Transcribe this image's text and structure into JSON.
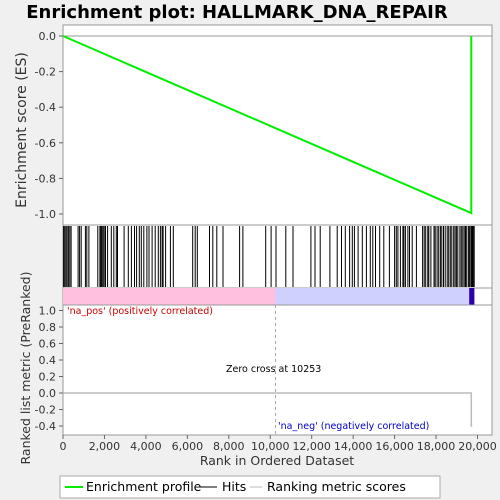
{
  "chart_data": {
    "type": "line",
    "title": "Enrichment plot: HALLMARK_DNA_REPAIR",
    "es_panel": {
      "ylabel": "Enrichment score (ES)",
      "ylim": [
        -1.05,
        0.05
      ],
      "yticks": [
        0.0,
        -0.2,
        -0.4,
        -0.6,
        -0.8,
        -1.0
      ],
      "ytick_labels": [
        "0.0",
        "-0.2",
        "-0.4",
        "-0.6",
        "-0.8",
        "-1.0"
      ],
      "series": [
        {
          "name": "Enrichment profile",
          "color": "#00ee00",
          "x": [
            0,
            19700,
            19700
          ],
          "y": [
            0.0,
            -0.995,
            0.0
          ]
        }
      ]
    },
    "hits": [
      30,
      80,
      140,
      200,
      260,
      330,
      390,
      730,
      800,
      880,
      1080,
      1150,
      1250,
      1680,
      1780,
      1830,
      1870,
      1930,
      1990,
      2050,
      2150,
      2330,
      2450,
      2570,
      2630,
      2950,
      3150,
      3300,
      3450,
      3550,
      3680,
      3780,
      3900,
      4050,
      4150,
      4300,
      4450,
      4600,
      4700,
      4780,
      4830,
      4950,
      5180,
      5320,
      6260,
      6380,
      6480,
      7070,
      7230,
      7420,
      7720,
      8520,
      8680,
      9780,
      10040,
      10280,
      10750,
      11100,
      11960,
      12160,
      12410,
      12880,
      13230,
      13440,
      13620,
      13830,
      13960,
      14060,
      14240,
      14440,
      14640,
      14830,
      14950,
      15080,
      15280,
      15480,
      15750,
      16000,
      16080,
      16160,
      16280,
      16400,
      16450,
      16520,
      16640,
      16720,
      16850,
      17050,
      17350,
      17430,
      17500,
      17600,
      17650,
      17750,
      17900,
      17960,
      18050,
      18130,
      18210,
      18280,
      18360,
      18440,
      18540,
      18610,
      18690,
      18760,
      18850,
      18920,
      18980,
      19050,
      19150,
      19220,
      19290,
      19360,
      19420,
      19480,
      19560,
      19620,
      19680,
      19720,
      19760,
      19800,
      19840
    ],
    "heatmap": {
      "pos_color": "#ffc0e0",
      "neg_color": "#d0d0ff",
      "zero_cross_rank": 10253
    },
    "metric_panel": {
      "ylabel": "Ranked list metric (PreRanked)",
      "xlabel": "Rank in Ordered Dataset",
      "ylim": [
        -0.45,
        1.05
      ],
      "yticks": [
        1.0,
        0.8,
        0.6,
        0.4,
        0.2,
        0.0,
        -0.2,
        -0.4
      ],
      "ytick_labels": [
        "1.0",
        "0.8",
        "0.6",
        "0.4",
        "0.2",
        "0.0",
        "-0.2",
        "-0.4"
      ],
      "xlim": [
        0,
        20700
      ],
      "xticks": [
        0,
        2000,
        4000,
        6000,
        8000,
        10000,
        12000,
        14000,
        16000,
        18000,
        20000
      ],
      "xtick_labels": [
        "0",
        "2,000",
        "4,000",
        "6,000",
        "8,000",
        "10,000",
        "12,000",
        "14,000",
        "16,000",
        "18,000",
        "20,000"
      ],
      "metric_line": {
        "x": [
          0,
          19700,
          19700,
          19750
        ],
        "y": [
          0.0,
          0.0,
          -0.4,
          -0.4
        ]
      },
      "zero_cross_label": "Zero cross at 10253",
      "pos_label": "'na_pos' (positively correlated)",
      "neg_label": "'na_neg' (negatively correlated)",
      "pos_label_color": "#cc0000",
      "neg_label_color": "#0000cc"
    },
    "legend": {
      "placement": "bottom",
      "items": [
        {
          "label": "Enrichment profile",
          "color": "#00ee00"
        },
        {
          "label": "Hits",
          "color": "#000000"
        },
        {
          "label": "Ranking metric scores",
          "color": "#bbbbbb"
        }
      ]
    }
  }
}
